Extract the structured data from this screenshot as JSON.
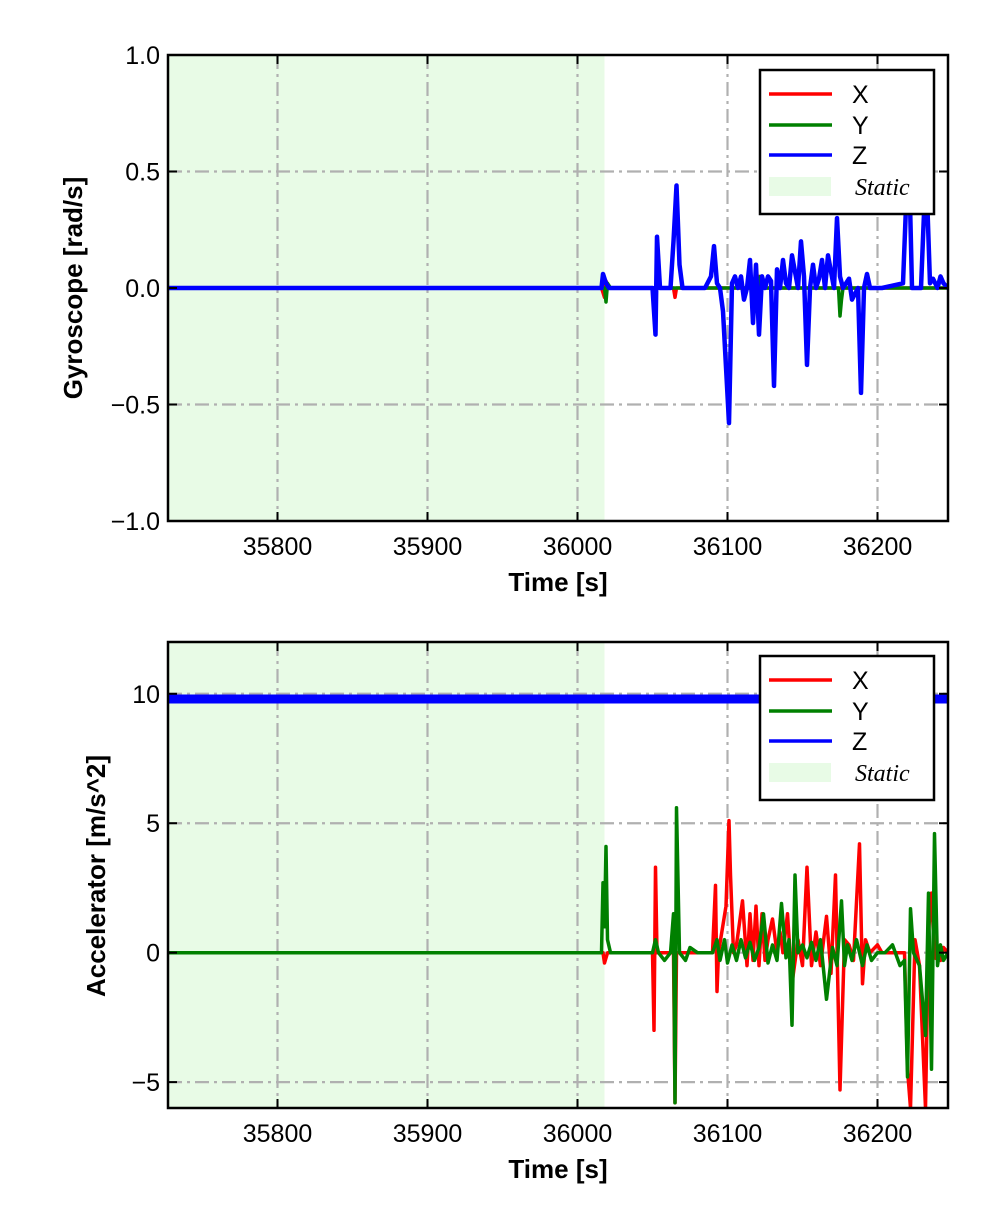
{
  "colors": {
    "x": "#ff0000",
    "y": "#008000",
    "z": "#0000ff",
    "static": "#e8fbe6",
    "grid": "#b0b0b0"
  },
  "legend": {
    "entries": [
      "X",
      "Y",
      "Z"
    ],
    "static_label": "Static"
  },
  "chart_data": [
    {
      "type": "line",
      "title": "",
      "xlabel": "Time [s]",
      "ylabel": "Gyroscope [rad/s]",
      "xlim": [
        35727,
        36247
      ],
      "ylim": [
        -1.0,
        1.0
      ],
      "xticks": [
        35800,
        35900,
        36000,
        36100,
        36200
      ],
      "xtick_labels": [
        "35800",
        "35900",
        "36000",
        "36100",
        "36200"
      ],
      "yticks": [
        -1.0,
        -0.5,
        0.0,
        0.5,
        1.0
      ],
      "ytick_labels": [
        "−1.0",
        "−0.5",
        "0.0",
        "0.5",
        "1.0"
      ],
      "grid": true,
      "legend_position": "top-right",
      "static_region": [
        35727,
        36018
      ],
      "series": [
        {
          "name": "X",
          "color": "#ff0000",
          "x": [
            35727,
            36016,
            36018,
            36019,
            36021,
            36064,
            36065,
            36066,
            36120,
            36121,
            36122,
            36247
          ],
          "y": [
            0,
            0,
            -0.04,
            0.03,
            0,
            0,
            -0.04,
            0,
            0,
            0.05,
            0,
            0
          ]
        },
        {
          "name": "Y",
          "color": "#008000",
          "x": [
            35727,
            36018,
            36019,
            36020,
            36022,
            36120,
            36122,
            36124,
            36174,
            36175,
            36176,
            36177,
            36247
          ],
          "y": [
            0,
            0,
            -0.06,
            0.02,
            0,
            0,
            0.05,
            0,
            0,
            -0.12,
            -0.05,
            0,
            0
          ]
        },
        {
          "name": "Z",
          "color": "#0000ff",
          "x": [
            35727,
            36016,
            36017,
            36019,
            36021,
            36050,
            36052,
            36053,
            36055,
            36062,
            36064,
            36066,
            36068,
            36070,
            36085,
            36089,
            36091,
            36093,
            36095,
            36097,
            36101,
            36103,
            36105,
            36107,
            36109,
            36111,
            36113,
            36115,
            36117,
            36119,
            36121,
            36123,
            36125,
            36127,
            36129,
            36131,
            36133,
            36135,
            36137,
            36139,
            36141,
            36143,
            36147,
            36149,
            36151,
            36153,
            36155,
            36157,
            36159,
            36161,
            36163,
            36165,
            36167,
            36171,
            36173,
            36175,
            36177,
            36181,
            36183,
            36187,
            36189,
            36191,
            36193,
            36195,
            36197,
            36199,
            36201,
            36203,
            36217,
            36219,
            36221,
            36223,
            36225,
            36227,
            36229,
            36231,
            36233,
            36235,
            36237,
            36240,
            36242,
            36244,
            36247
          ],
          "y": [
            0,
            0,
            0.06,
            0.02,
            0,
            0,
            -0.2,
            0.22,
            0,
            0,
            0.2,
            0.44,
            0.1,
            0,
            0,
            0.05,
            0.18,
            0.02,
            0,
            -0.1,
            -0.58,
            0.02,
            0.05,
            0,
            0.05,
            -0.05,
            0,
            0.12,
            -0.15,
            0.1,
            -0.2,
            0.05,
            0,
            0.05,
            0.03,
            -0.42,
            0.08,
            0,
            0.12,
            0.02,
            0,
            0.14,
            0,
            0.2,
            0.05,
            -0.33,
            0,
            0.1,
            0,
            0.04,
            0.12,
            0,
            0.14,
            0,
            0.3,
            0.05,
            0,
            0.04,
            -0.05,
            0,
            -0.45,
            0,
            0.06,
            0,
            0,
            0,
            0,
            0,
            0.02,
            0.35,
            0.55,
            0,
            0,
            0,
            0,
            0.32,
            0.4,
            0.02,
            0.04,
            0,
            0.05,
            0.02,
            0
          ]
        }
      ]
    },
    {
      "type": "line",
      "title": "",
      "xlabel": "Time [s]",
      "ylabel": "Accelerator [m/s^2]",
      "xlim": [
        35727,
        36247
      ],
      "ylim": [
        -6,
        12
      ],
      "xticks": [
        35800,
        35900,
        36000,
        36100,
        36200
      ],
      "xtick_labels": [
        "35800",
        "35900",
        "36000",
        "36100",
        "36200"
      ],
      "yticks": [
        -5,
        0,
        5,
        10
      ],
      "ytick_labels": [
        "−5",
        "0",
        "5",
        "10"
      ],
      "grid": true,
      "legend_position": "top-right",
      "static_region": [
        35727,
        36018
      ],
      "series": [
        {
          "name": "Z",
          "color": "#0000ff",
          "x": [
            35727,
            35800,
            35900,
            36000,
            36100,
            36200,
            36247
          ],
          "y": [
            9.8,
            9.8,
            9.8,
            9.8,
            9.8,
            9.8,
            9.8
          ]
        },
        {
          "name": "X",
          "color": "#ff0000",
          "x": [
            35727,
            36017,
            36018,
            36020,
            36050,
            36051,
            36052,
            36053,
            36054,
            36062,
            36064,
            36065,
            36066,
            36090,
            36092,
            36093,
            36094,
            36099,
            36101,
            36102,
            36104,
            36106,
            36110,
            36113,
            36115,
            36117,
            36119,
            36121,
            36123,
            36125,
            36127,
            36130,
            36133,
            36135,
            36137,
            36140,
            36143,
            36147,
            36150,
            36153,
            36156,
            36159,
            36162,
            36166,
            36169,
            36172,
            36175,
            36178,
            36181,
            36184,
            36188,
            36190,
            36192,
            36195,
            36200,
            36203,
            36218,
            36220,
            36222,
            36225,
            36228,
            36232,
            36234,
            36236,
            36238,
            36242,
            36244,
            36247
          ],
          "y": [
            0,
            0,
            -0.4,
            0,
            0,
            -3,
            3.3,
            0,
            0,
            0,
            0,
            -5.8,
            0,
            0,
            2.6,
            -1.5,
            0,
            1.8,
            5.1,
            3,
            0,
            0.3,
            2,
            -0.5,
            1.5,
            -0.3,
            1.8,
            -0.5,
            1.5,
            -0.3,
            0.5,
            1.3,
            0,
            0.8,
            0,
            1.5,
            -1.2,
            0.5,
            -0.5,
            3.3,
            -0.5,
            0.8,
            -0.5,
            1.4,
            -0.8,
            3.0,
            -5.3,
            0.5,
            0.3,
            -0.3,
            4.2,
            -1.2,
            0.5,
            0,
            0.3,
            0,
            0,
            -4.5,
            -6,
            0.5,
            -0.5,
            -6,
            0.8,
            2.3,
            -0.2,
            -0.3,
            0.2,
            0
          ]
        },
        {
          "name": "Y",
          "color": "#008000",
          "x": [
            35727,
            36016,
            36017,
            36018,
            36019,
            36020,
            36022,
            36024,
            36050,
            36052,
            36054,
            36058,
            36062,
            36064,
            36065,
            36066,
            36068,
            36072,
            36075,
            36080,
            36090,
            36093,
            36095,
            36098,
            36100,
            36103,
            36106,
            36109,
            36112,
            36115,
            36118,
            36121,
            36124,
            36127,
            36130,
            36133,
            36136,
            36139,
            36141,
            36143,
            36145,
            36147,
            36150,
            36153,
            36156,
            36159,
            36162,
            36166,
            36170,
            36173,
            36176,
            36178,
            36180,
            36183,
            36186,
            36190,
            36193,
            36196,
            36200,
            36205,
            36210,
            36215,
            36218,
            36220,
            36222,
            36224,
            36228,
            36232,
            36234,
            36236,
            36238,
            36240,
            36242,
            36244,
            36247
          ],
          "y": [
            0,
            0,
            2.7,
            1.0,
            4.1,
            0.5,
            0,
            0,
            0,
            0.5,
            0,
            -0.3,
            0,
            1.5,
            -5.8,
            5.6,
            0,
            -0.3,
            0.2,
            0,
            0,
            0.5,
            -0.3,
            0.5,
            -0.4,
            0.3,
            -0.3,
            0.5,
            -0.2,
            0.4,
            -0.3,
            0.2,
            1.5,
            -0.4,
            0.3,
            -0.3,
            1.9,
            -0.2,
            0.5,
            -2.8,
            3.0,
            0,
            0.3,
            -0.2,
            0.4,
            -0.3,
            0.5,
            -1.8,
            0.2,
            -0.5,
            2.0,
            -0.5,
            0.3,
            -0.3,
            0.5,
            -0.5,
            0.3,
            -0.3,
            0,
            0,
            0.3,
            -0.5,
            -0.3,
            -4.8,
            1.7,
            0,
            -0.5,
            -3.2,
            2.3,
            -4.5,
            4.6,
            -0.5,
            0.3,
            -0.3,
            0
          ]
        }
      ]
    }
  ]
}
